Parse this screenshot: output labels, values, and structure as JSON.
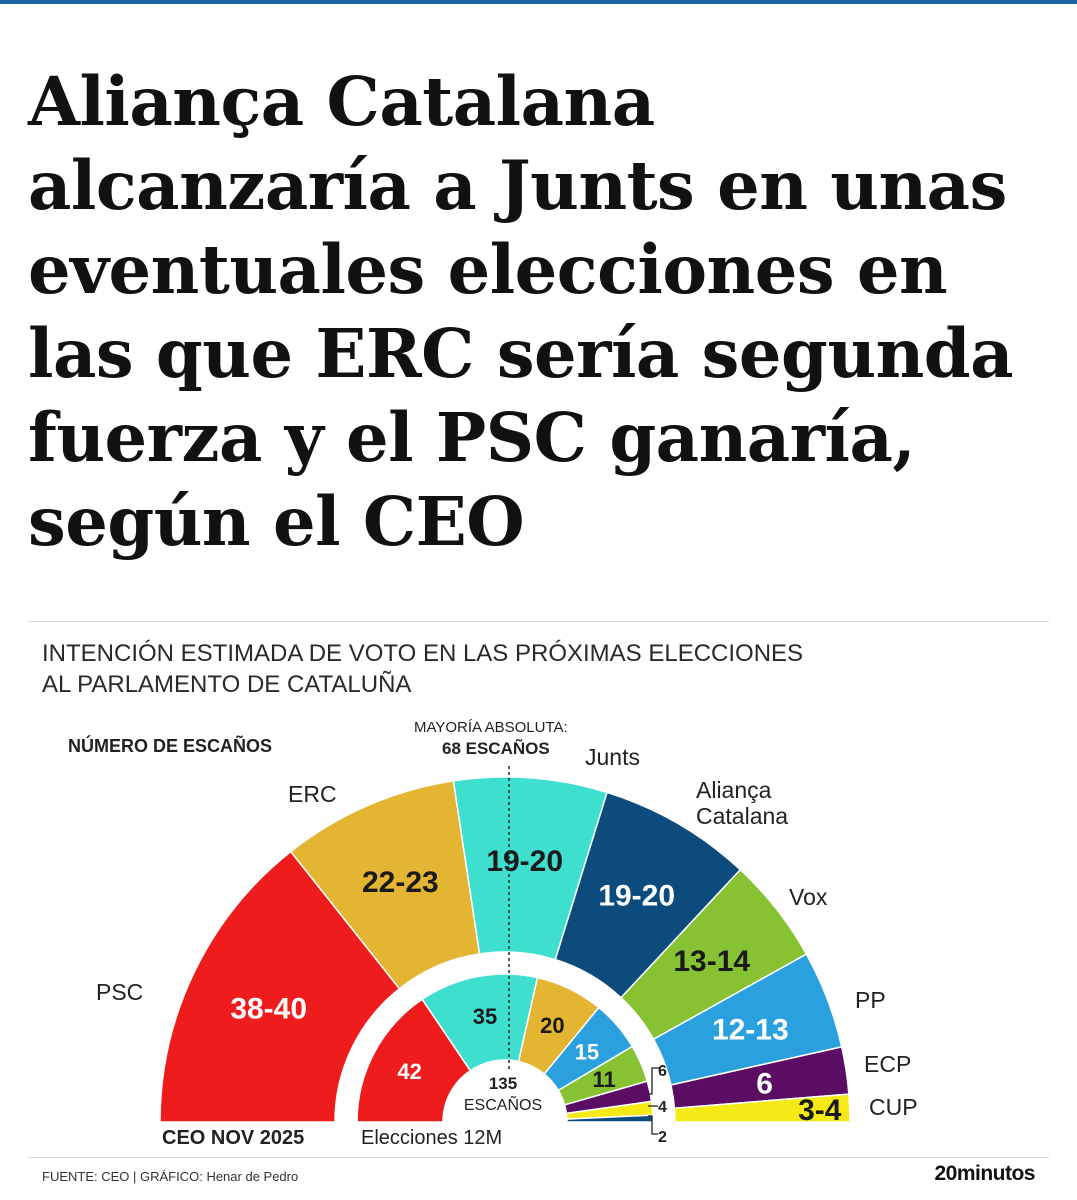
{
  "headline": {
    "lines": [
      "Aliança Catalana",
      "alcanzaría a Junts en unas",
      "eventuales elecciones en",
      "las que ERC sería segunda",
      "fuerza y el PSC ganaría,",
      "según el CEO"
    ]
  },
  "chart_data": {
    "type": "pie",
    "subtype": "parliament-semicircle",
    "title_lines": [
      "INTENCIÓN ESTIMADA DE VOTO EN LAS PRÓXIMAS ELECCIONES",
      "AL PARLAMENTO DE CATALUÑA"
    ],
    "subtitle": "NÚMERO DE ESCAÑOS",
    "total_seats": 135,
    "total_label": "135",
    "total_unit": "ESCAÑOS",
    "majority": {
      "label_line1": "MAYORÍA ABSOLUTA:",
      "label_line2": "68 ESCAÑOS",
      "seats": 68
    },
    "outer_ring": {
      "name": "CEO NOV 2025",
      "parties": [
        {
          "party": "PSC",
          "seats_label": "38-40",
          "seats": 39,
          "color": "#ee1c1c"
        },
        {
          "party": "ERC",
          "seats_label": "22-23",
          "seats": 22.5,
          "color": "#e4b433"
        },
        {
          "party": "Junts",
          "seats_label": "19-20",
          "seats": 19.5,
          "color": "#3fdfd0"
        },
        {
          "party": "Aliança Catalana",
          "seats_label": "19-20",
          "seats": 19.5,
          "color": "#0e4b7d"
        },
        {
          "party": "Vox",
          "seats_label": "13-14",
          "seats": 13.5,
          "color": "#86c232"
        },
        {
          "party": "PP",
          "seats_label": "12-13",
          "seats": 12.5,
          "color": "#2aa0de"
        },
        {
          "party": "ECP",
          "seats_label": "6",
          "seats": 6,
          "color": "#5b0d63"
        },
        {
          "party": "CUP",
          "seats_label": "3-4",
          "seats": 3.5,
          "color": "#f5ea15"
        }
      ]
    },
    "inner_ring": {
      "name": "Elecciones 12M",
      "parties": [
        {
          "party": "PSC",
          "seats_label": "42",
          "seats": 42,
          "color": "#ee1c1c"
        },
        {
          "party": "Junts",
          "seats_label": "35",
          "seats": 35,
          "color": "#3fdfd0"
        },
        {
          "party": "ERC",
          "seats_label": "20",
          "seats": 20,
          "color": "#e4b433"
        },
        {
          "party": "PP",
          "seats_label": "15",
          "seats": 15,
          "color": "#2aa0de"
        },
        {
          "party": "Vox",
          "seats_label": "11",
          "seats": 11,
          "color": "#86c232"
        },
        {
          "party": "ECP",
          "seats_label": "6",
          "seats": 6,
          "color": "#5b0d63"
        },
        {
          "party": "CUP",
          "seats_label": "4",
          "seats": 4,
          "color": "#f5ea15"
        },
        {
          "party": "Aliança Catalana",
          "seats_label": "2",
          "seats": 2,
          "color": "#0e4b7d"
        }
      ]
    }
  },
  "footer": {
    "source": "FUENTE: CEO  |  GRÁFICO: Henar de Pedro",
    "brand": "20minutos"
  }
}
